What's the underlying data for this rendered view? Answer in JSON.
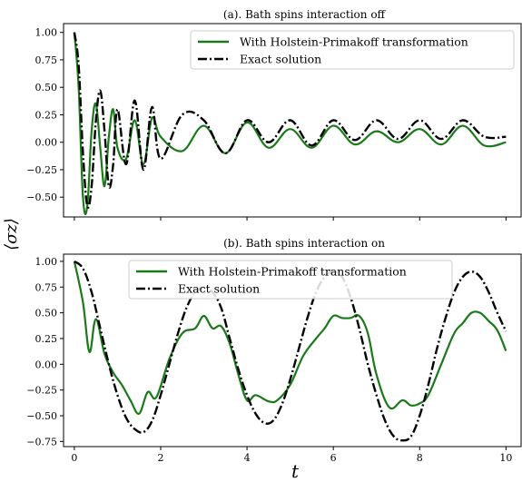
{
  "figure": {
    "ylabel": "⟨σz⟩",
    "xlabel": "t"
  },
  "chart_data": [
    {
      "type": "line",
      "title": "(a). Bath spins interaction off",
      "xlim": [
        -0.25,
        10.35
      ],
      "ylim": [
        -0.68,
        1.08
      ],
      "xticks": [
        0,
        2,
        4,
        6,
        8,
        10
      ],
      "xticklabels": [],
      "yticks": [
        1.0,
        0.75,
        0.5,
        0.25,
        0.0,
        -0.25,
        -0.5
      ],
      "yticklabels": [
        "1.00",
        "0.75",
        "0.50",
        "0.25",
        "0.00",
        "−0.25",
        "−0.50"
      ],
      "legend_position": "top-right",
      "series": [
        {
          "name": "With Holstein-Primakoff transformation",
          "color": "#1a7a1a",
          "style": "solid",
          "x": [
            0,
            0.1,
            0.2,
            0.3,
            0.4,
            0.5,
            0.6,
            0.7,
            0.8,
            0.9,
            1.0,
            1.2,
            1.4,
            1.6,
            1.8,
            2.0,
            2.5,
            3.0,
            3.5,
            4.0,
            4.5,
            5.0,
            5.5,
            6.0,
            6.5,
            7.0,
            7.5,
            8.0,
            8.5,
            9.0,
            9.5,
            10.0
          ],
          "y": [
            1.0,
            0.5,
            -0.5,
            -0.58,
            0.1,
            0.35,
            -0.05,
            -0.4,
            0.05,
            0.3,
            -0.05,
            -0.15,
            0.2,
            -0.2,
            0.22,
            0.05,
            -0.08,
            0.15,
            -0.1,
            0.18,
            -0.05,
            0.12,
            -0.05,
            0.15,
            -0.02,
            0.1,
            0.0,
            0.12,
            -0.02,
            0.15,
            -0.03,
            0.0
          ]
        },
        {
          "name": "Exact solution",
          "color": "#000000",
          "style": "dashdot",
          "x": [
            0,
            0.1,
            0.2,
            0.3,
            0.4,
            0.5,
            0.6,
            0.7,
            0.8,
            0.9,
            1.0,
            1.2,
            1.4,
            1.6,
            1.8,
            2.0,
            2.5,
            3.0,
            3.5,
            4.0,
            4.5,
            5.0,
            5.5,
            6.0,
            6.5,
            7.0,
            7.5,
            8.0,
            8.5,
            9.0,
            9.5,
            10.0
          ],
          "y": [
            1.0,
            0.7,
            -0.1,
            -0.58,
            -0.4,
            0.2,
            0.47,
            0.1,
            -0.4,
            -0.2,
            0.3,
            -0.2,
            0.38,
            -0.25,
            0.32,
            -0.15,
            0.25,
            0.2,
            -0.1,
            0.2,
            0.0,
            0.2,
            -0.03,
            0.2,
            0.02,
            0.2,
            0.03,
            0.2,
            0.03,
            0.2,
            0.05,
            0.05
          ]
        }
      ]
    },
    {
      "type": "line",
      "title": "(b). Bath spins interaction on",
      "xlim": [
        -0.25,
        10.35
      ],
      "ylim": [
        -0.8,
        1.07
      ],
      "xticks": [
        0,
        2,
        4,
        6,
        8,
        10
      ],
      "xticklabels": [
        "0",
        "2",
        "4",
        "6",
        "8",
        "10"
      ],
      "yticks": [
        1.0,
        0.75,
        0.5,
        0.25,
        0.0,
        -0.25,
        -0.5,
        -0.75
      ],
      "yticklabels": [
        "1.00",
        "0.75",
        "0.50",
        "0.25",
        "0.00",
        "−0.25",
        "−0.50",
        "−0.75"
      ],
      "legend_position": "top-left",
      "series": [
        {
          "name": "With Holstein-Primakoff transformation",
          "color": "#1a7a1a",
          "style": "solid",
          "x": [
            0,
            0.2,
            0.35,
            0.5,
            0.7,
            0.9,
            1.1,
            1.3,
            1.5,
            1.7,
            1.9,
            2.2,
            2.5,
            2.8,
            3.0,
            3.2,
            3.4,
            3.6,
            3.8,
            4.0,
            4.2,
            4.5,
            4.7,
            5.0,
            5.3,
            5.6,
            5.8,
            6.0,
            6.2,
            6.4,
            6.6,
            6.8,
            7.0,
            7.3,
            7.6,
            7.8,
            8.0,
            8.2,
            8.5,
            8.8,
            9.0,
            9.2,
            9.4,
            9.6,
            9.8,
            10.0
          ],
          "y": [
            1.0,
            0.6,
            0.12,
            0.44,
            0.1,
            -0.08,
            -0.2,
            -0.35,
            -0.48,
            -0.27,
            -0.32,
            0.05,
            0.3,
            0.35,
            0.47,
            0.35,
            0.37,
            0.2,
            -0.1,
            -0.35,
            -0.3,
            -0.36,
            -0.35,
            -0.2,
            0.08,
            0.25,
            0.35,
            0.47,
            0.45,
            0.45,
            0.47,
            0.3,
            -0.1,
            -0.42,
            -0.35,
            -0.4,
            -0.38,
            -0.3,
            0.0,
            0.3,
            0.4,
            0.5,
            0.5,
            0.42,
            0.33,
            0.13
          ]
        },
        {
          "name": "Exact solution",
          "color": "#000000",
          "style": "dashdot",
          "x": [
            0,
            0.2,
            0.4,
            0.6,
            0.8,
            1.0,
            1.2,
            1.4,
            1.6,
            1.8,
            2.0,
            2.2,
            2.4,
            2.6,
            2.8,
            3.0,
            3.2,
            3.4,
            3.6,
            3.8,
            4.0,
            4.2,
            4.4,
            4.6,
            4.8,
            5.0,
            5.2,
            5.4,
            5.6,
            5.8,
            6.0,
            6.2,
            6.4,
            6.6,
            6.8,
            7.0,
            7.2,
            7.4,
            7.6,
            7.8,
            8.0,
            8.2,
            8.4,
            8.6,
            8.8,
            9.0,
            9.2,
            9.4,
            9.6,
            9.8,
            10.0
          ],
          "y": [
            1.0,
            0.93,
            0.7,
            0.35,
            0.0,
            -0.3,
            -0.52,
            -0.63,
            -0.66,
            -0.55,
            -0.3,
            0.0,
            0.3,
            0.55,
            0.7,
            0.75,
            0.7,
            0.55,
            0.25,
            -0.05,
            -0.3,
            -0.48,
            -0.57,
            -0.55,
            -0.4,
            -0.15,
            0.15,
            0.45,
            0.7,
            0.85,
            0.9,
            0.85,
            0.65,
            0.35,
            0.0,
            -0.3,
            -0.55,
            -0.7,
            -0.74,
            -0.7,
            -0.5,
            -0.2,
            0.15,
            0.45,
            0.7,
            0.85,
            0.9,
            0.85,
            0.7,
            0.5,
            0.32
          ]
        }
      ]
    }
  ]
}
